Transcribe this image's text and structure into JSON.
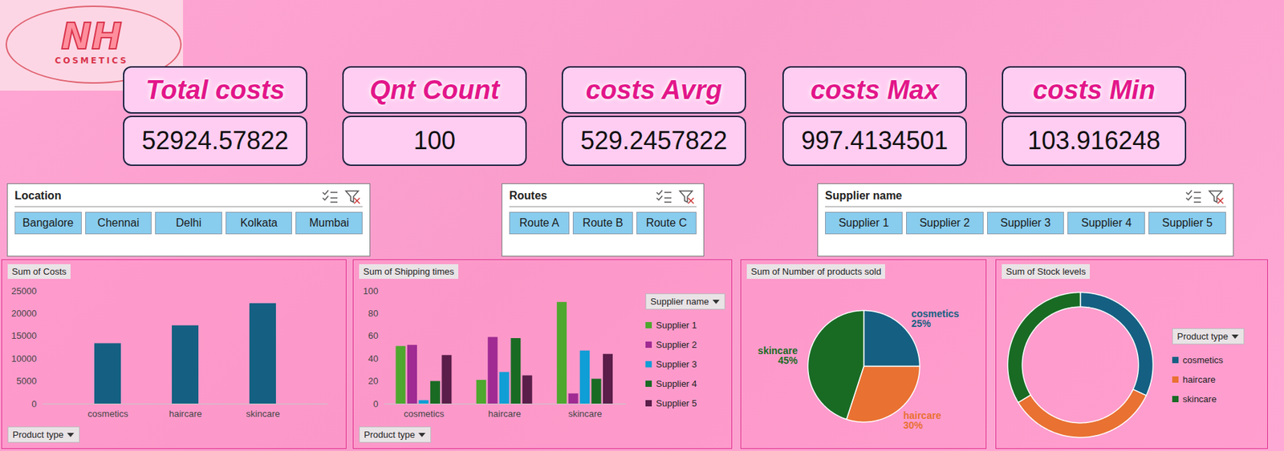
{
  "logo": {
    "title": "NH",
    "subtitle": "COSMETICS"
  },
  "kpis": [
    {
      "title": "Total costs",
      "value": 52924.57822
    },
    {
      "title": "Qnt Count",
      "value": 100
    },
    {
      "title": "costs Avrg",
      "value": 529.2457822
    },
    {
      "title": "costs Max",
      "value": 997.4134501
    },
    {
      "title": "costs Min",
      "value": 103.916248
    }
  ],
  "slicers": [
    {
      "title": "Location",
      "items": [
        "Bangalore",
        "Chennai",
        "Delhi",
        "Kolkata",
        "Mumbai"
      ]
    },
    {
      "title": "Routes",
      "items": [
        "Route A",
        "Route B",
        "Route C"
      ]
    },
    {
      "title": "Supplier name",
      "items": [
        "Supplier 1",
        "Supplier 2",
        "Supplier 3",
        "Supplier 4",
        "Supplier 5"
      ]
    }
  ],
  "chart_data": [
    {
      "type": "bar",
      "title": "Sum of Costs",
      "x_label": "Product type",
      "categories": [
        "cosmetics",
        "haircare",
        "skincare"
      ],
      "values": [
        13366,
        17329,
        22229
      ],
      "color": "#156082",
      "ylim": [
        0,
        25000
      ],
      "yticks": [
        0,
        5000,
        10000,
        15000,
        20000,
        25000
      ],
      "grid": false
    },
    {
      "type": "bar",
      "title": "Sum of Shipping times",
      "x_label": "Product type",
      "legend_title": "Supplier name",
      "legend": "right",
      "categories": [
        "cosmetics",
        "haircare",
        "skincare"
      ],
      "series": [
        {
          "name": "Supplier 1",
          "color": "#4ea72e",
          "values": [
            51,
            21,
            90
          ]
        },
        {
          "name": "Supplier 2",
          "color": "#a02b93",
          "values": [
            52,
            59,
            9
          ]
        },
        {
          "name": "Supplier 3",
          "color": "#0f9ed5",
          "values": [
            3,
            28,
            47
          ]
        },
        {
          "name": "Supplier 4",
          "color": "#196b24",
          "values": [
            20,
            58,
            22
          ]
        },
        {
          "name": "Supplier 5",
          "color": "#5b1d4a",
          "values": [
            43,
            25,
            44
          ]
        }
      ],
      "ylim": [
        0,
        100
      ],
      "yticks": [
        0,
        20,
        40,
        60,
        80,
        100
      ],
      "grid": false
    },
    {
      "type": "pie",
      "title": "Sum of Number of products sold",
      "categories": [
        "cosmetics",
        "haircare",
        "skincare"
      ],
      "values": [
        25,
        30,
        45
      ],
      "value_labels": [
        "25%",
        "30%",
        "45%"
      ],
      "colors": [
        "#156082",
        "#e97132",
        "#196b24"
      ],
      "data_labels": true
    },
    {
      "type": "donut",
      "title": "Sum of Stock levels",
      "legend_title": "Product type",
      "legend": "right",
      "categories": [
        "cosmetics",
        "haircare",
        "skincare"
      ],
      "values": [
        1525,
        1644,
        1608
      ],
      "colors": [
        "#156082",
        "#e97132",
        "#196b24"
      ]
    }
  ]
}
